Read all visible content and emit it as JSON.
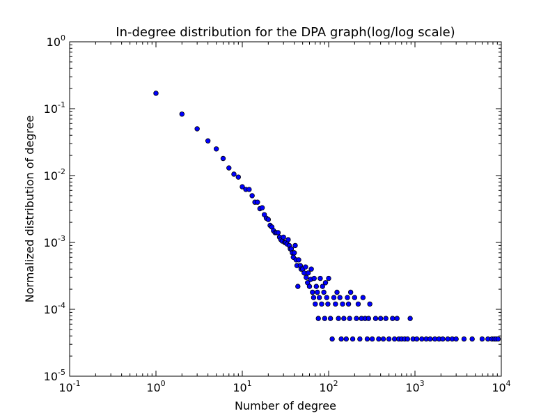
{
  "chart_data": {
    "type": "scatter",
    "title": "In-degree distribution for the DPA graph(log/log scale)",
    "xlabel": "Number of degree",
    "ylabel": "Normalized distribution of degree",
    "x_scale": "log",
    "y_scale": "log",
    "xlim": [
      0.1,
      10000
    ],
    "ylim": [
      1e-05,
      1
    ],
    "grid": false,
    "marker_color": "#0000ff",
    "marker_edge_color": "#000000",
    "x_ticks": [
      {
        "base": "10",
        "exp": "-1",
        "value": 0.1
      },
      {
        "base": "10",
        "exp": "0",
        "value": 1
      },
      {
        "base": "10",
        "exp": "1",
        "value": 10
      },
      {
        "base": "10",
        "exp": "2",
        "value": 100
      },
      {
        "base": "10",
        "exp": "3",
        "value": 1000
      },
      {
        "base": "10",
        "exp": "4",
        "value": 10000
      }
    ],
    "y_ticks": [
      {
        "base": "10",
        "exp": "0",
        "value": 1
      },
      {
        "base": "10",
        "exp": "-1",
        "value": 0.1
      },
      {
        "base": "10",
        "exp": "-2",
        "value": 0.01
      },
      {
        "base": "10",
        "exp": "-3",
        "value": 0.001
      },
      {
        "base": "10",
        "exp": "-4",
        "value": 0.0001
      },
      {
        "base": "10",
        "exp": "-5",
        "value": 1e-05
      }
    ],
    "points": [
      [
        1,
        0.17
      ],
      [
        2,
        0.083
      ],
      [
        3,
        0.05
      ],
      [
        4,
        0.033
      ],
      [
        5,
        0.025
      ],
      [
        6,
        0.018
      ],
      [
        7,
        0.013
      ],
      [
        8,
        0.0105
      ],
      [
        9,
        0.0095
      ],
      [
        10,
        0.0068
      ],
      [
        11,
        0.0062
      ],
      [
        12,
        0.0062
      ],
      [
        13,
        0.005
      ],
      [
        14,
        0.004
      ],
      [
        15,
        0.004
      ],
      [
        16,
        0.0032
      ],
      [
        17,
        0.0033
      ],
      [
        18,
        0.0026
      ],
      [
        19,
        0.0023
      ],
      [
        20,
        0.0022
      ],
      [
        21,
        0.0018
      ],
      [
        22,
        0.0017
      ],
      [
        23,
        0.0015
      ],
      [
        24,
        0.0014
      ],
      [
        25,
        0.0014
      ],
      [
        26,
        0.0014
      ],
      [
        27,
        0.0012
      ],
      [
        28,
        0.0011
      ],
      [
        29,
        0.00105
      ],
      [
        30,
        0.0012
      ],
      [
        31,
        0.001
      ],
      [
        32,
        0.001
      ],
      [
        33,
        0.00095
      ],
      [
        34,
        0.0011
      ],
      [
        35,
        0.0009
      ],
      [
        36,
        0.0008
      ],
      [
        37,
        0.0008
      ],
      [
        38,
        0.0007
      ],
      [
        39,
        0.0006
      ],
      [
        40,
        0.0007
      ],
      [
        41,
        0.0009
      ],
      [
        42,
        0.00055
      ],
      [
        43,
        0.00045
      ],
      [
        44,
        0.00022
      ],
      [
        45,
        0.00055
      ],
      [
        47,
        0.00045
      ],
      [
        48,
        0.0004
      ],
      [
        50,
        0.0004
      ],
      [
        52,
        0.00035
      ],
      [
        54,
        0.00043
      ],
      [
        55,
        0.0003
      ],
      [
        57,
        0.00025
      ],
      [
        58,
        0.00035
      ],
      [
        60,
        0.00022
      ],
      [
        62,
        0.00028
      ],
      [
        63,
        0.0004
      ],
      [
        65,
        0.00018
      ],
      [
        67,
        0.00015
      ],
      [
        68,
        0.00029
      ],
      [
        70,
        0.00012
      ],
      [
        72,
        0.00022
      ],
      [
        74,
        0.00018
      ],
      [
        76,
        7.3e-05
      ],
      [
        78,
        0.00015
      ],
      [
        80,
        0.00029
      ],
      [
        83,
        0.00012
      ],
      [
        85,
        0.00022
      ],
      [
        88,
        0.00018
      ],
      [
        90,
        7.3e-05
      ],
      [
        92,
        0.00025
      ],
      [
        95,
        0.00015
      ],
      [
        98,
        0.00012
      ],
      [
        100,
        0.00029
      ],
      [
        105,
        7.3e-05
      ],
      [
        110,
        3.6e-05
      ],
      [
        115,
        0.00015
      ],
      [
        120,
        0.00012
      ],
      [
        125,
        0.00018
      ],
      [
        130,
        7.3e-05
      ],
      [
        135,
        0.00015
      ],
      [
        140,
        3.6e-05
      ],
      [
        145,
        0.00012
      ],
      [
        150,
        7.3e-05
      ],
      [
        160,
        3.6e-05
      ],
      [
        165,
        0.00015
      ],
      [
        170,
        0.00012
      ],
      [
        175,
        7.3e-05
      ],
      [
        180,
        0.00018
      ],
      [
        190,
        3.6e-05
      ],
      [
        200,
        0.00015
      ],
      [
        210,
        7.3e-05
      ],
      [
        220,
        0.00012
      ],
      [
        230,
        3.6e-05
      ],
      [
        240,
        7.3e-05
      ],
      [
        250,
        0.00015
      ],
      [
        265,
        7.3e-05
      ],
      [
        280,
        3.6e-05
      ],
      [
        290,
        7.3e-05
      ],
      [
        300,
        0.00012
      ],
      [
        320,
        3.6e-05
      ],
      [
        350,
        7.3e-05
      ],
      [
        380,
        3.6e-05
      ],
      [
        400,
        7.3e-05
      ],
      [
        430,
        3.6e-05
      ],
      [
        460,
        7.3e-05
      ],
      [
        500,
        3.6e-05
      ],
      [
        550,
        7.3e-05
      ],
      [
        580,
        3.6e-05
      ],
      [
        620,
        7.3e-05
      ],
      [
        650,
        3.6e-05
      ],
      [
        700,
        3.6e-05
      ],
      [
        760,
        3.6e-05
      ],
      [
        820,
        3.6e-05
      ],
      [
        880,
        7.3e-05
      ],
      [
        950,
        3.6e-05
      ],
      [
        1050,
        3.6e-05
      ],
      [
        1200,
        3.6e-05
      ],
      [
        1350,
        3.6e-05
      ],
      [
        1500,
        3.6e-05
      ],
      [
        1700,
        3.6e-05
      ],
      [
        1900,
        3.6e-05
      ],
      [
        2100,
        3.6e-05
      ],
      [
        2400,
        3.6e-05
      ],
      [
        2700,
        3.6e-05
      ],
      [
        3000,
        3.6e-05
      ],
      [
        3700,
        3.6e-05
      ],
      [
        4600,
        3.6e-05
      ],
      [
        6000,
        3.6e-05
      ],
      [
        7000,
        3.6e-05
      ],
      [
        7800,
        3.6e-05
      ],
      [
        8300,
        3.6e-05
      ],
      [
        8700,
        3.6e-05
      ],
      [
        9200,
        3.6e-05
      ]
    ]
  }
}
